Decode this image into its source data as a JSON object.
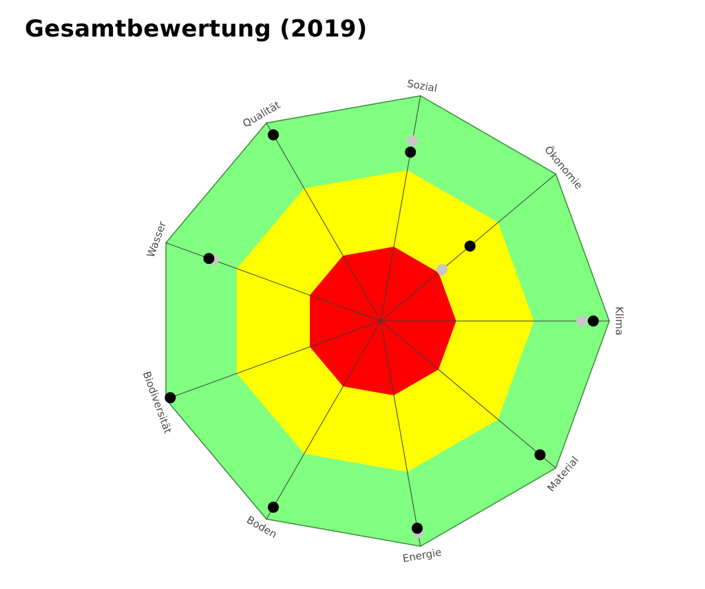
{
  "page": {
    "title": "Gesamtbewertung (2019)"
  },
  "chart_data": {
    "type": "radar",
    "title": "Gesamtbewertung (2019)",
    "axes": [
      "Klima",
      "Ökonomie",
      "Sozial",
      "Qualität",
      "Wasser",
      "Biodiversität",
      "Boden",
      "Energie",
      "Material"
    ],
    "bands": [
      {
        "name": "red",
        "from": 0,
        "to": 0.33,
        "color": "#ff0000"
      },
      {
        "name": "yellow",
        "from": 0.33,
        "to": 0.67,
        "color": "#ffff00"
      },
      {
        "name": "green",
        "from": 0.67,
        "to": 1.0,
        "color": "#80ff80"
      }
    ],
    "series": [
      {
        "values": [
          0.93,
          0.51,
          0.75,
          0.94,
          0.8,
          0.98,
          0.94,
          0.92,
          0.91
        ],
        "color": "#000000"
      },
      {
        "values": [
          0.88,
          0.35,
          0.8,
          null,
          0.78,
          null,
          null,
          0.94,
          null
        ],
        "color": "#c8c8c8"
      }
    ],
    "range": [
      0,
      1
    ],
    "grid": false,
    "legend": "none"
  }
}
